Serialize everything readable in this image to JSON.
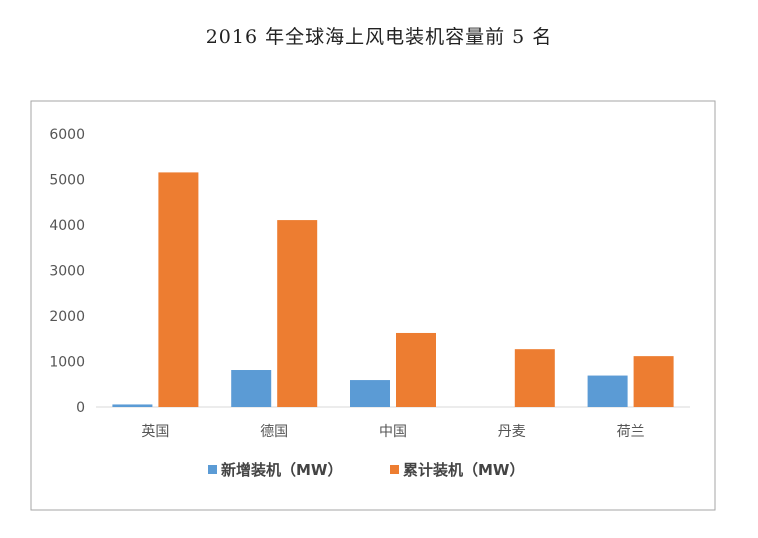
{
  "page": {
    "title": "2016 年全球海上风电装机容量前 5 名"
  },
  "colors": {
    "series1": "#5b9bd5",
    "series2": "#ed7d31",
    "frame": "#a6a6a6",
    "axis": "#d9d9d9",
    "text": "#555555"
  },
  "chart_data": {
    "type": "bar",
    "title": "2016 年全球海上风电装机容量前 5 名",
    "xlabel": "",
    "ylabel": "",
    "categories": [
      "英国",
      "德国",
      "中国",
      "丹麦",
      "荷兰"
    ],
    "series": [
      {
        "name": "新增装机（MW）",
        "values": [
          56,
          813,
          592,
          0,
          691
        ]
      },
      {
        "name": "累计装机（MW）",
        "values": [
          5156,
          4108,
          1627,
          1271,
          1118
        ]
      }
    ],
    "ylim": [
      0,
      6000
    ],
    "yticks": [
      0,
      1000,
      2000,
      3000,
      4000,
      5000,
      6000
    ],
    "grid": false,
    "legend_position": "bottom"
  }
}
